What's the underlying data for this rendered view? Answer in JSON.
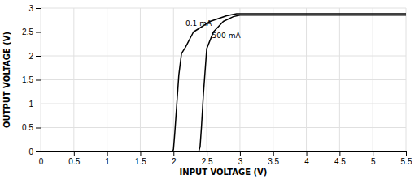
{
  "chart_data": {
    "type": "line",
    "xlabel": "INPUT VOLTAGE (V)",
    "ylabel": "OUTPUT VOLTAGE (V)",
    "xlim": [
      0,
      5.5
    ],
    "ylim": [
      0,
      3
    ],
    "xticks": [
      0,
      0.5,
      1,
      1.5,
      2,
      2.5,
      3,
      3.5,
      4,
      4.5,
      5,
      5.5
    ],
    "yticks": [
      0,
      0.5,
      1,
      1.5,
      2,
      2.5,
      3
    ],
    "grid": true,
    "series": [
      {
        "color": "#000000",
        "x": [
          0.0,
          1.99,
          2.0,
          2.02,
          2.05,
          2.08,
          2.12,
          2.18,
          2.3,
          2.55,
          2.8,
          2.95,
          3.0,
          3.5,
          4.0,
          5.5
        ],
        "values": [
          0.0,
          0.0,
          0.05,
          0.4,
          1.0,
          1.6,
          2.05,
          2.18,
          2.5,
          2.72,
          2.84,
          2.88,
          2.88,
          2.88,
          2.88,
          2.88
        ]
      },
      {
        "color": "#000000",
        "x": [
          0.0,
          2.38,
          2.4,
          2.42,
          2.45,
          2.5,
          2.6,
          2.75,
          2.9,
          3.0,
          3.5,
          4.0,
          5.5
        ],
        "values": [
          0.0,
          0.0,
          0.1,
          0.5,
          1.2,
          2.15,
          2.5,
          2.72,
          2.82,
          2.85,
          2.85,
          2.85,
          2.85
        ]
      }
    ],
    "annotations": [
      {
        "text": "0.1 mA",
        "x": 2.18,
        "y": 2.62
      },
      {
        "text": "500 mA",
        "x": 2.58,
        "y": 2.38
      }
    ]
  }
}
